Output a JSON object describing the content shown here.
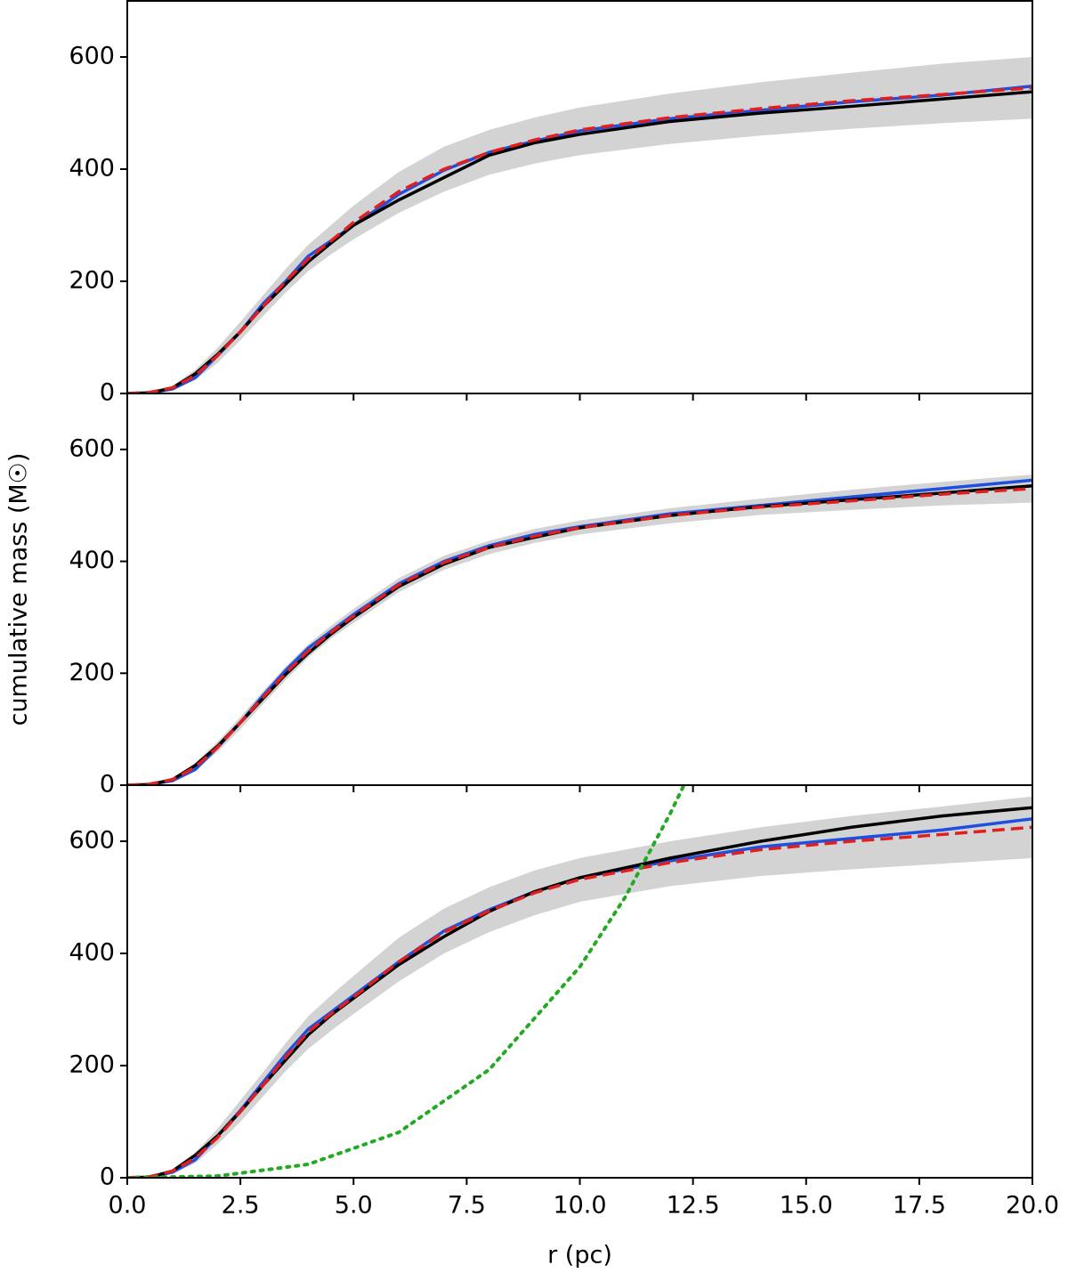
{
  "chart_data": [
    {
      "type": "line",
      "x": [
        0,
        0.5,
        1,
        1.5,
        2,
        2.5,
        3,
        3.5,
        4,
        4.5,
        5,
        6,
        7,
        8,
        9,
        10,
        12,
        14,
        16,
        18,
        20
      ],
      "xlim": [
        0,
        20
      ],
      "xticks": [
        {
          "value": 0,
          "label": "0.0"
        },
        {
          "value": 2.5,
          "label": "2.5"
        },
        {
          "value": 5,
          "label": "5.0"
        },
        {
          "value": 7.5,
          "label": "7.5"
        },
        {
          "value": 10,
          "label": "10.0"
        },
        {
          "value": 12.5,
          "label": "12.5"
        },
        {
          "value": 15,
          "label": "15.0"
        },
        {
          "value": 17.5,
          "label": "17.5"
        },
        {
          "value": 20,
          "label": "20.0"
        }
      ],
      "ylim": [
        0,
        700
      ],
      "yticks": [
        0,
        200,
        400,
        600
      ],
      "band": {
        "color": "#d3d3d3",
        "lower": [
          0,
          1,
          6,
          24,
          55,
          95,
          138,
          180,
          218,
          248,
          275,
          322,
          360,
          390,
          410,
          425,
          445,
          460,
          472,
          482,
          490
        ],
        "upper": [
          0,
          3,
          14,
          42,
          82,
          128,
          175,
          222,
          265,
          300,
          335,
          395,
          440,
          470,
          492,
          510,
          535,
          555,
          572,
          588,
          600
        ]
      },
      "series": [
        {
          "color": "#1f4fe0",
          "style": "solid",
          "values": [
            0,
            1,
            8,
            28,
            68,
            110,
            160,
            200,
            245,
            272,
            300,
            355,
            398,
            430,
            450,
            468,
            490,
            505,
            520,
            532,
            548
          ]
        },
        {
          "color": "#000000",
          "style": "solid",
          "values": [
            0,
            1,
            10,
            35,
            70,
            110,
            155,
            195,
            235,
            268,
            300,
            345,
            385,
            425,
            447,
            462,
            485,
            500,
            512,
            525,
            538
          ]
        },
        {
          "color": "#e02020",
          "style": "dashed",
          "values": [
            0,
            2,
            10,
            32,
            68,
            110,
            155,
            200,
            240,
            272,
            305,
            360,
            400,
            430,
            452,
            470,
            492,
            508,
            522,
            533,
            545
          ]
        }
      ]
    },
    {
      "type": "line",
      "x": [
        0,
        0.5,
        1,
        1.5,
        2,
        2.5,
        3,
        3.5,
        4,
        4.5,
        5,
        6,
        7,
        8,
        9,
        10,
        12,
        14,
        16,
        18,
        20
      ],
      "xlim": [
        0,
        20
      ],
      "xticks": [
        {
          "value": 0,
          "label": "0.0"
        },
        {
          "value": 2.5,
          "label": "2.5"
        },
        {
          "value": 5,
          "label": "5.0"
        },
        {
          "value": 7.5,
          "label": "7.5"
        },
        {
          "value": 10,
          "label": "10.0"
        },
        {
          "value": 12.5,
          "label": "12.5"
        },
        {
          "value": 15,
          "label": "15.0"
        },
        {
          "value": 17.5,
          "label": "17.5"
        },
        {
          "value": 20,
          "label": "20.0"
        }
      ],
      "ylim": [
        0,
        700
      ],
      "yticks": [
        0,
        200,
        400,
        600
      ],
      "ylabel": "cumulative mass (M☉)",
      "band": {
        "color": "#d3d3d3",
        "lower": [
          0,
          1,
          7,
          26,
          60,
          100,
          145,
          188,
          228,
          262,
          290,
          345,
          385,
          413,
          433,
          448,
          468,
          483,
          492,
          500,
          505
        ],
        "upper": [
          0,
          3,
          13,
          40,
          78,
          122,
          168,
          212,
          252,
          285,
          315,
          370,
          410,
          437,
          458,
          473,
          495,
          512,
          528,
          542,
          555
        ]
      },
      "series": [
        {
          "color": "#1f4fe0",
          "style": "solid",
          "values": [
            0,
            1,
            8,
            28,
            68,
            112,
            160,
            205,
            245,
            275,
            305,
            360,
            400,
            428,
            448,
            462,
            485,
            500,
            515,
            530,
            545
          ]
        },
        {
          "color": "#000000",
          "style": "solid",
          "values": [
            0,
            1,
            10,
            35,
            70,
            112,
            155,
            198,
            236,
            270,
            300,
            355,
            395,
            425,
            443,
            460,
            482,
            498,
            510,
            522,
            535
          ]
        },
        {
          "color": "#e02020",
          "style": "dashed",
          "values": [
            0,
            2,
            10,
            32,
            68,
            112,
            157,
            200,
            240,
            273,
            302,
            358,
            398,
            425,
            445,
            460,
            482,
            497,
            508,
            520,
            530
          ]
        }
      ]
    },
    {
      "type": "line",
      "x": [
        0,
        0.5,
        1,
        1.5,
        2,
        2.5,
        3,
        3.5,
        4,
        4.5,
        5,
        6,
        7,
        8,
        9,
        10,
        12,
        14,
        16,
        18,
        20
      ],
      "xlim": [
        0,
        20
      ],
      "xticks": [
        {
          "value": 0,
          "label": "0.0"
        },
        {
          "value": 2.5,
          "label": "2.5"
        },
        {
          "value": 5,
          "label": "5.0"
        },
        {
          "value": 7.5,
          "label": "7.5"
        },
        {
          "value": 10,
          "label": "10.0"
        },
        {
          "value": 12.5,
          "label": "12.5"
        },
        {
          "value": 15,
          "label": "15.0"
        },
        {
          "value": 17.5,
          "label": "17.5"
        },
        {
          "value": 20,
          "label": "20.0"
        }
      ],
      "ylim": [
        0,
        700
      ],
      "yticks": [
        0,
        200,
        400,
        600
      ],
      "xlabel": "r (pc)",
      "band": {
        "color": "#d3d3d3",
        "lower": [
          0,
          1,
          7,
          26,
          60,
          100,
          145,
          190,
          230,
          262,
          292,
          350,
          400,
          438,
          468,
          492,
          520,
          538,
          550,
          560,
          570
        ],
        "upper": [
          0,
          3,
          15,
          45,
          88,
          138,
          188,
          240,
          288,
          325,
          360,
          428,
          480,
          518,
          548,
          570,
          600,
          625,
          645,
          662,
          680
        ]
      },
      "series": [
        {
          "color": "#1f4fe0",
          "style": "solid",
          "values": [
            0,
            1,
            10,
            32,
            75,
            120,
            170,
            220,
            265,
            295,
            325,
            385,
            440,
            478,
            510,
            535,
            565,
            590,
            605,
            620,
            640
          ]
        },
        {
          "color": "#000000",
          "style": "solid",
          "values": [
            0,
            1,
            12,
            40,
            75,
            118,
            165,
            210,
            255,
            290,
            320,
            380,
            430,
            475,
            510,
            535,
            570,
            600,
            625,
            645,
            660
          ]
        },
        {
          "color": "#e02020",
          "style": "dashed",
          "values": [
            0,
            2,
            12,
            35,
            72,
            118,
            165,
            215,
            260,
            292,
            322,
            385,
            438,
            476,
            508,
            532,
            562,
            585,
            600,
            612,
            625
          ]
        },
        {
          "color": "#22aa22",
          "style": "dotted",
          "x": [
            0,
            2,
            4,
            6,
            8,
            10,
            11,
            12,
            12.3
          ],
          "values": [
            0,
            3,
            24,
            81,
            193,
            376,
            500,
            650,
            700
          ]
        }
      ]
    }
  ]
}
